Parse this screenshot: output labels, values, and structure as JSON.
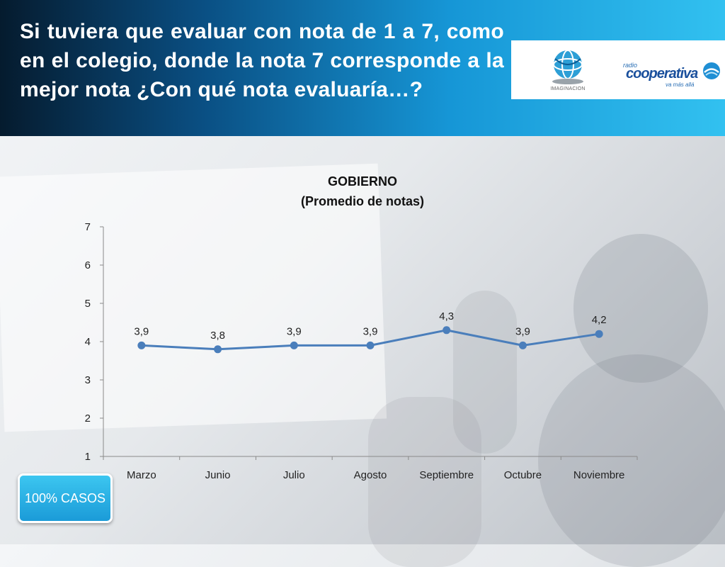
{
  "header": {
    "question": "Si tuviera que evaluar con nota de 1 a 7, como en el colegio, donde la nota 7 corresponde a la mejor nota ¿Con qué nota evaluaría…?"
  },
  "logos": {
    "left_text": "IMAGINACION",
    "right_small": "radio",
    "right_brand": "cooperativa",
    "right_tag": "va más allá"
  },
  "badge": {
    "label": "100% CASOS"
  },
  "chart_data": {
    "type": "line",
    "title": "GOBIERNO",
    "subtitle": "(Promedio de notas)",
    "categories": [
      "Marzo",
      "Junio",
      "Julio",
      "Agosto",
      "Septiembre",
      "Octubre",
      "Noviembre"
    ],
    "values": [
      3.9,
      3.8,
      3.9,
      3.9,
      4.3,
      3.9,
      4.2
    ],
    "data_labels": [
      "3,9",
      "3,8",
      "3,9",
      "3,9",
      "4,3",
      "3,9",
      "4,2"
    ],
    "y_ticks": [
      "1",
      "2",
      "3",
      "4",
      "5",
      "6",
      "7"
    ],
    "ylim": [
      1,
      7
    ],
    "grid": false,
    "legend": "none",
    "line_color": "#4a7ebb"
  }
}
